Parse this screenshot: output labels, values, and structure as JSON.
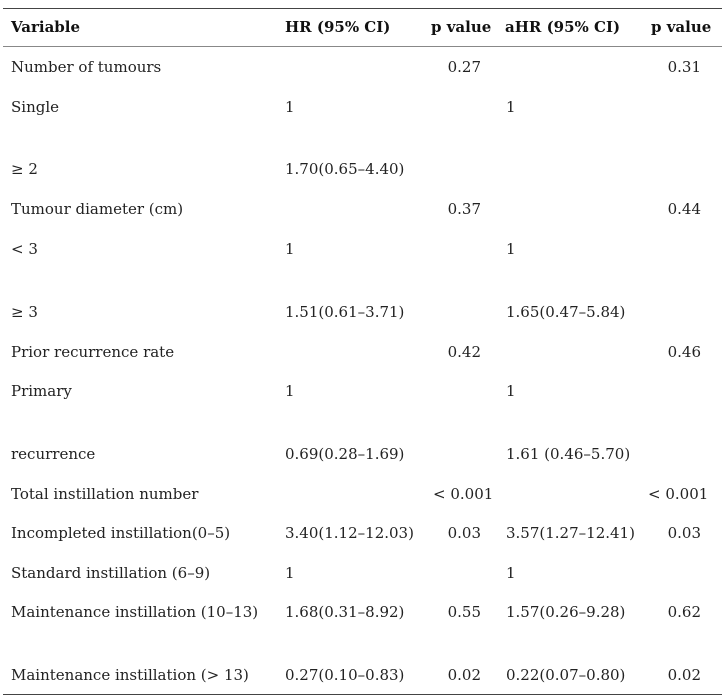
{
  "headers": [
    "Variable",
    "HR (95% CI)",
    "p value",
    "aHR (95% CI)",
    "p value"
  ],
  "rows": [
    [
      "Number of tumours",
      "",
      "0.27",
      "",
      "0.31"
    ],
    [
      "Single",
      "1",
      "",
      "1",
      ""
    ],
    [
      "≥ 2",
      "1.70(0.65–4.40)",
      "",
      "",
      ""
    ],
    [
      "Tumour diameter (cm)",
      "",
      "0.37",
      "",
      "0.44"
    ],
    [
      "< 3",
      "1",
      "",
      "1",
      ""
    ],
    [
      "≥ 3",
      "1.51(0.61–3.71)",
      "",
      "1.65(0.47–5.84)",
      ""
    ],
    [
      "Prior recurrence rate",
      "",
      "0.42",
      "",
      "0.46"
    ],
    [
      "Primary",
      "1",
      "",
      "1",
      ""
    ],
    [
      "recurrence",
      "0.69(0.28–1.69)",
      "",
      "1.61 (0.46–5.70)",
      ""
    ],
    [
      "Total instillation number",
      "",
      "< 0.001",
      "",
      "< 0.001"
    ],
    [
      "Incompleted instillation(0–5)",
      "3.40(1.12–12.03)",
      "0.03",
      "3.57(1.27–12.41)",
      "0.03"
    ],
    [
      "Standard instillation (6–9)",
      "1",
      "",
      "1",
      ""
    ],
    [
      "Maintenance instillation (10–13)",
      "1.68(0.31–8.92)",
      "0.55",
      "1.57(0.26–9.28)",
      "0.62"
    ],
    [
      "Maintenance instillation (> 13)",
      "0.27(0.10–0.83)",
      "0.02",
      "0.22(0.07–0.80)",
      "0.02"
    ]
  ]
}
